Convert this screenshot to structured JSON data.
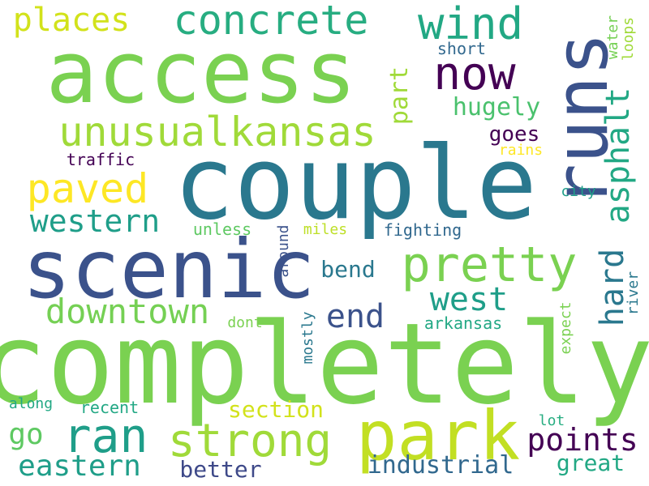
{
  "words": {
    "completely": {
      "text": "completely",
      "color": "#7ad151"
    },
    "couple": {
      "text": "couple",
      "color": "#2a788e"
    },
    "access": {
      "text": "access",
      "color": "#7ad151"
    },
    "scenic": {
      "text": "scenic",
      "color": "#3b528b"
    },
    "runs": {
      "text": "runs",
      "color": "#3b528b"
    },
    "park": {
      "text": "park",
      "color": "#c2df23"
    },
    "pretty": {
      "text": "pretty",
      "color": "#7ad151"
    },
    "unusualkansas": {
      "text": "unusualkansas",
      "color": "#a0da39"
    },
    "strong": {
      "text": "strong",
      "color": "#a0da39"
    },
    "concrete": {
      "text": "concrete",
      "color": "#27ad81"
    },
    "ran": {
      "text": "ran",
      "color": "#1f9e89"
    },
    "wind": {
      "text": "wind",
      "color": "#22a884"
    },
    "now": {
      "text": "now",
      "color": "#440154"
    },
    "paved": {
      "text": "paved",
      "color": "#fde725"
    },
    "asphalt": {
      "text": "asphalt",
      "color": "#22a884"
    },
    "downtown": {
      "text": "downtown",
      "color": "#75d054"
    },
    "western": {
      "text": "western",
      "color": "#1f9e89"
    },
    "places": {
      "text": "places",
      "color": "#d2e21b"
    },
    "west": {
      "text": "west",
      "color": "#1f9e89"
    },
    "hard": {
      "text": "hard",
      "color": "#2a788e"
    },
    "end": {
      "text": "end",
      "color": "#3b528b"
    },
    "points": {
      "text": "points",
      "color": "#440154"
    },
    "eastern": {
      "text": "eastern",
      "color": "#1f9e89"
    },
    "industrial": {
      "text": "industrial",
      "color": "#31688e"
    },
    "hugely": {
      "text": "hugely",
      "color": "#4ac16d"
    },
    "part": {
      "text": "part",
      "color": "#a0da39"
    },
    "go": {
      "text": "go",
      "color": "#5ec962"
    },
    "section": {
      "text": "section",
      "color": "#d2e21b"
    },
    "bend": {
      "text": "bend",
      "color": "#2a788e"
    },
    "better": {
      "text": "better",
      "color": "#3e4989"
    },
    "great": {
      "text": "great",
      "color": "#22a884"
    },
    "goes": {
      "text": "goes",
      "color": "#440154"
    },
    "loops": {
      "text": "loops",
      "color": "#a0da39"
    },
    "water": {
      "text": "water",
      "color": "#75d054"
    },
    "short": {
      "text": "short",
      "color": "#31688e"
    },
    "traffic": {
      "text": "traffic",
      "color": "#440154"
    },
    "rains": {
      "text": "rains",
      "color": "#fde725"
    },
    "city": {
      "text": "city",
      "color": "#1f9e89"
    },
    "fighting": {
      "text": "fighting",
      "color": "#31688e"
    },
    "miles": {
      "text": "miles",
      "color": "#bddf26"
    },
    "unless": {
      "text": "unless",
      "color": "#5ec962"
    },
    "around": {
      "text": "around",
      "color": "#3b528b"
    },
    "dont": {
      "text": "dont",
      "color": "#7ad151"
    },
    "arkansas": {
      "text": "arkansas",
      "color": "#22a884"
    },
    "mostly": {
      "text": "mostly",
      "color": "#2a788e"
    },
    "expect": {
      "text": "expect",
      "color": "#7ad151"
    },
    "river": {
      "text": "river",
      "color": "#2a788e"
    },
    "along": {
      "text": "along",
      "color": "#22a884"
    },
    "recent": {
      "text": "recent",
      "color": "#22a884"
    },
    "lot": {
      "text": "lot",
      "color": "#27ad81"
    }
  }
}
